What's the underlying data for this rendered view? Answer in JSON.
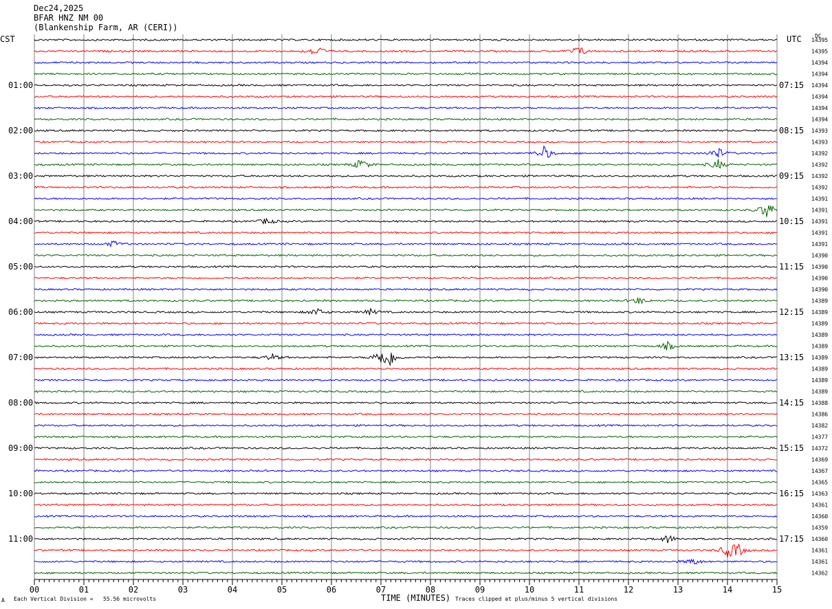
{
  "header": {
    "date": "Dec24,2025",
    "station": "BFAR HNZ NM 00",
    "location": "(Blankenship Farm, AR (CERI))"
  },
  "left_axis_title": "CST",
  "right_axis_title": "UTC",
  "right_edge_title": "DC",
  "footer": {
    "division_note": "Each Vertical Division =   55.56 microvolts",
    "clip_note": "Traces clipped at plus/minus 5 vertical divisions",
    "corner_mark": "A"
  },
  "colors": {
    "trace_cycle": [
      "#000000",
      "#ff0000",
      "#0000ff",
      "#006400"
    ],
    "grid": "#808080"
  },
  "chart_data": {
    "type": "line",
    "xlabel": "TIME (MINUTES)",
    "x_range": [
      0,
      15
    ],
    "x_ticks": [
      "00",
      "01",
      "02",
      "03",
      "04",
      "05",
      "06",
      "07",
      "08",
      "09",
      "10",
      "11",
      "12",
      "13",
      "14",
      "15"
    ],
    "hour_labels_left": [
      "01:00",
      "02:00",
      "03:00",
      "04:00",
      "05:00",
      "06:00",
      "07:00",
      "08:00",
      "09:00",
      "10:00",
      "11:00"
    ],
    "hour_labels_right": [
      "07:15",
      "08:15",
      "09:15",
      "10:15",
      "11:15",
      "12:15",
      "13:15",
      "14:15",
      "15:15",
      "16:15",
      "17:15"
    ],
    "dc_values": [
      "14395",
      "14395",
      "14394",
      "14394",
      "14394",
      "14394",
      "14394",
      "14394",
      "14393",
      "14393",
      "14392",
      "14392",
      "14392",
      "14392",
      "14391",
      "14391",
      "14391",
      "14391",
      "14391",
      "14390",
      "14390",
      "14390",
      "14390",
      "14389",
      "14389",
      "14389",
      "14389",
      "14389",
      "14389",
      "14389",
      "14389",
      "14389",
      "14388",
      "14386",
      "14382",
      "14377",
      "14372",
      "14369",
      "14367",
      "14365",
      "14363",
      "14361",
      "14360",
      "14359",
      "14360",
      "14361",
      "14361",
      "14362"
    ],
    "events": [
      {
        "trace": 1,
        "minute": 5.7,
        "amp": 1.0
      },
      {
        "trace": 1,
        "minute": 11.0,
        "amp": 0.9
      },
      {
        "trace": 10,
        "minute": 10.3,
        "amp": 1.2
      },
      {
        "trace": 10,
        "minute": 13.8,
        "amp": 1.0
      },
      {
        "trace": 11,
        "minute": 6.6,
        "amp": 1.0
      },
      {
        "trace": 11,
        "minute": 13.8,
        "amp": 0.9
      },
      {
        "trace": 16,
        "minute": 4.7,
        "amp": 0.6
      },
      {
        "trace": 15,
        "minute": 14.8,
        "amp": 1.6
      },
      {
        "trace": 18,
        "minute": 1.6,
        "amp": 0.5
      },
      {
        "trace": 23,
        "minute": 12.2,
        "amp": 0.6
      },
      {
        "trace": 24,
        "minute": 5.7,
        "amp": 0.7
      },
      {
        "trace": 24,
        "minute": 6.8,
        "amp": 0.5
      },
      {
        "trace": 27,
        "minute": 12.8,
        "amp": 0.7
      },
      {
        "trace": 28,
        "minute": 7.0,
        "amp": 1.4
      },
      {
        "trace": 28,
        "minute": 7.2,
        "amp": 1.2
      },
      {
        "trace": 28,
        "minute": 4.8,
        "amp": 0.6
      },
      {
        "trace": 44,
        "minute": 12.8,
        "amp": 0.7
      },
      {
        "trace": 45,
        "minute": 14.0,
        "amp": 1.0
      },
      {
        "trace": 45,
        "minute": 14.2,
        "amp": 1.1
      },
      {
        "trace": 46,
        "minute": 13.3,
        "amp": 0.6
      }
    ]
  }
}
